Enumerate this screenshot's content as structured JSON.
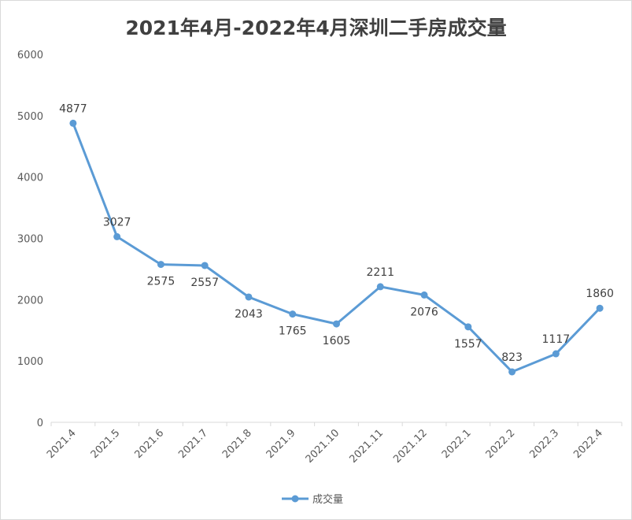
{
  "chart_data": {
    "type": "line",
    "title": "2021年4月-2022年4月深圳二手房成交量",
    "xlabel": "",
    "ylabel": "",
    "ylim": [
      0,
      6000
    ],
    "yticks": [
      0,
      1000,
      2000,
      3000,
      4000,
      5000,
      6000
    ],
    "grid": false,
    "legend": "bottom",
    "categories": [
      "2021.4",
      "2021.5",
      "2021.6",
      "2021.7",
      "2021.8",
      "2021.9",
      "2021.10",
      "2021.11",
      "2021.12",
      "2022.1",
      "2022.2",
      "2022.3",
      "2022.4"
    ],
    "series": [
      {
        "name": "成交量",
        "color": "#5b9bd5",
        "values": [
          4877,
          3027,
          2575,
          2557,
          2043,
          1765,
          1605,
          2211,
          2076,
          1557,
          823,
          1117,
          1860
        ]
      }
    ]
  }
}
